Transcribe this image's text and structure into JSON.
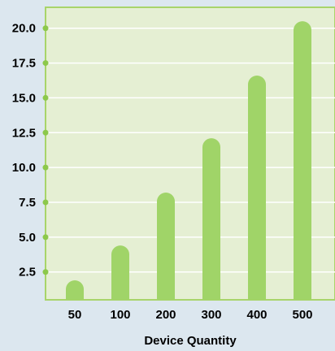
{
  "colors": {
    "page_background": "#dce7ef",
    "plot_background": "#e5efd3",
    "plot_border": "#a8d46a",
    "bar": "#a0d468",
    "gridline": "#ffffff",
    "tick_dot": "#8cc84b"
  },
  "chart_data": {
    "type": "bar",
    "categories": [
      "50",
      "100",
      "200",
      "300",
      "400",
      "500"
    ],
    "values": [
      1.9,
      4.4,
      8.2,
      12.1,
      16.6,
      20.5
    ],
    "title": "",
    "xlabel": "Device Quantity",
    "ylabel": "",
    "ylim": [
      0.5,
      21.5
    ],
    "yticks": [
      "2.5",
      "5.0",
      "7.5",
      "10.0",
      "12.5",
      "15.0",
      "17.5",
      "20.0"
    ],
    "grid": true,
    "legend": "none"
  }
}
